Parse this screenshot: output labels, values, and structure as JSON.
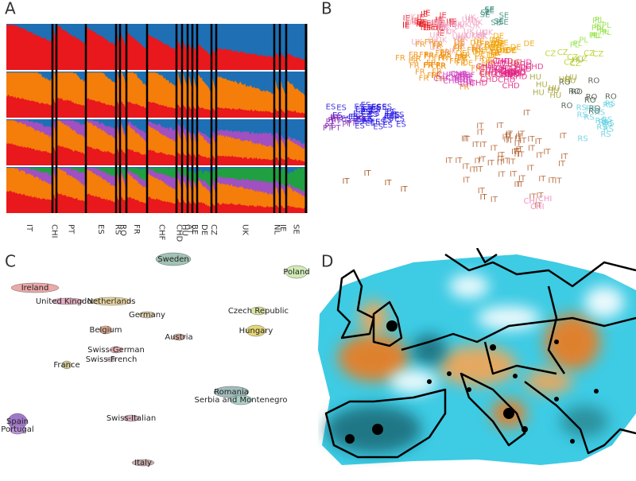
{
  "panels": [
    {
      "label": "A",
      "population_labels": [
        "IT",
        "CHI",
        "PT",
        "ES",
        "RS",
        "RO",
        "FR",
        "CHF",
        "CHD",
        "HU",
        "AT",
        "BE",
        "DE",
        "CZ",
        "UK",
        "NL",
        "IE",
        "SE"
      ]
    },
    {
      "label": "B",
      "clusters": [
        {
          "label": "IE",
          "color": "#e8141c"
        },
        {
          "label": "UK",
          "color": "#f0a0c0"
        },
        {
          "label": "SE",
          "color": "#3a8a7a"
        },
        {
          "label": "DE",
          "color": "#f0a000"
        },
        {
          "label": "FR",
          "color": "#f08a00"
        },
        {
          "label": "CHF",
          "color": "#d040c0"
        },
        {
          "label": "ES",
          "color": "#2010e0"
        },
        {
          "label": "PT",
          "color": "#8020b0"
        },
        {
          "label": "IT",
          "color": "#b06030"
        },
        {
          "label": "RO",
          "color": "#405040"
        },
        {
          "label": "RS",
          "color": "#60d0e0"
        },
        {
          "label": "HU",
          "color": "#a0a030"
        },
        {
          "label": "PL",
          "color": "#90e040"
        },
        {
          "label": "CZ",
          "color": "#b0d020"
        },
        {
          "label": "CHD",
          "color": "#e02080"
        },
        {
          "label": "CHI",
          "color": "#f080c0"
        }
      ]
    },
    {
      "label": "C",
      "countries": [
        {
          "name": "Sweden",
          "color": "#8fb8a8"
        },
        {
          "name": "Poland",
          "color": "#c8e8a8"
        },
        {
          "name": "Ireland",
          "color": "#e89a9a"
        },
        {
          "name": "United Kingdom",
          "color": "#e0a0b8"
        },
        {
          "name": "Netherlands",
          "color": "#e8d090"
        },
        {
          "name": "Germany",
          "color": "#e0c8a0"
        },
        {
          "name": "Czech Republic",
          "color": "#d8e090"
        },
        {
          "name": "Hungary",
          "color": "#e0d060"
        },
        {
          "name": "Belgium",
          "color": "#d8a080"
        },
        {
          "name": "Austria",
          "color": "#d0a090"
        },
        {
          "name": "Swiss-German",
          "color": "#e0a0a0"
        },
        {
          "name": "Swiss-French",
          "color": "#c8b0c0"
        },
        {
          "name": "France",
          "color": "#d0c080"
        },
        {
          "name": "Romania",
          "color": "#90b0b0"
        },
        {
          "name": "Serbia and Montenegro",
          "color": "#a0c8c0"
        },
        {
          "name": "Swiss-Italian",
          "color": "#d0a0b0"
        },
        {
          "name": "Spain",
          "color": "#9060c0"
        },
        {
          "name": "Portugal",
          "color": "#b080d0"
        },
        {
          "name": "Italy",
          "color": "#c0a0a0"
        }
      ]
    },
    {
      "label": "D"
    }
  ]
}
